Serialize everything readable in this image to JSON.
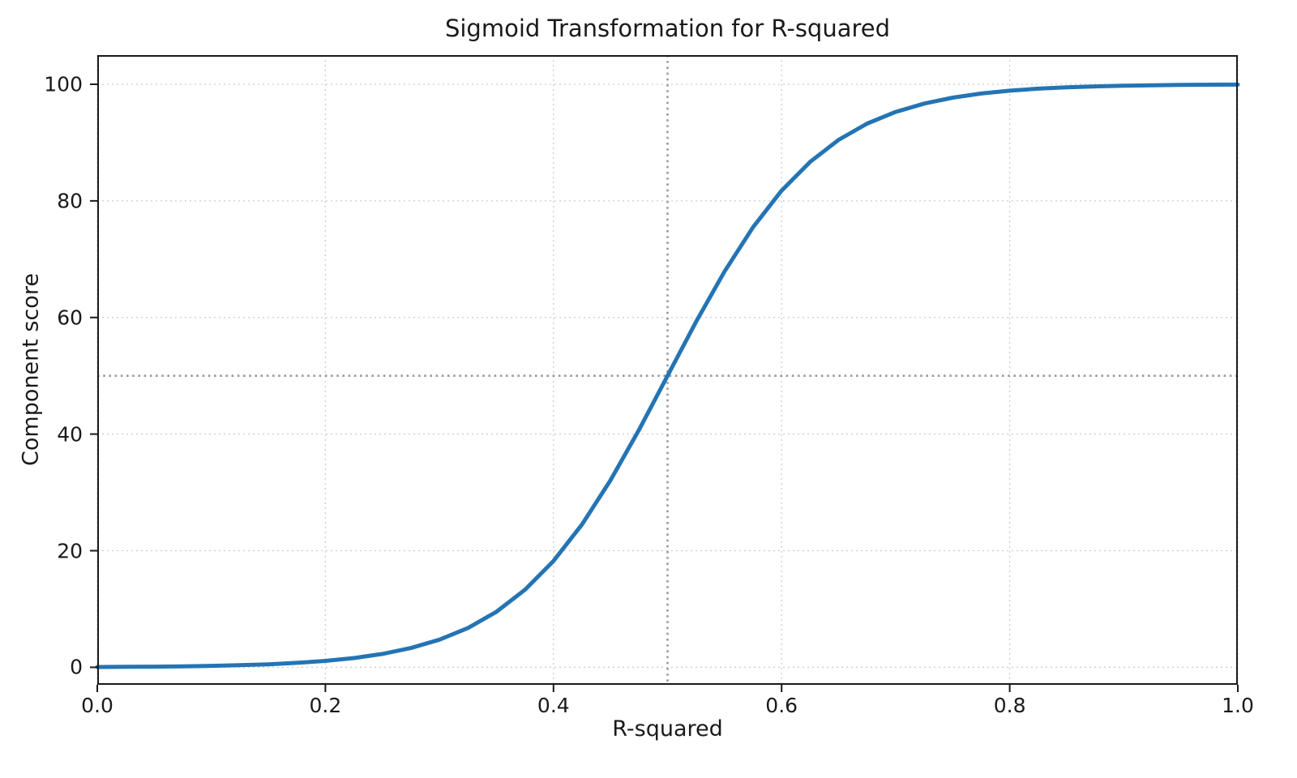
{
  "chart_data": {
    "type": "line",
    "title": "Sigmoid Transformation for R-squared",
    "xlabel": "R-squared",
    "ylabel": "Component score",
    "xlim": [
      0.0,
      1.0
    ],
    "ylim": [
      -3,
      105
    ],
    "xticks": [
      0.0,
      0.2,
      0.4,
      0.6,
      0.8,
      1.0
    ],
    "xtick_labels": [
      "0.0",
      "0.2",
      "0.4",
      "0.6",
      "0.8",
      "1.0"
    ],
    "yticks": [
      0,
      20,
      40,
      60,
      80,
      100
    ],
    "ytick_labels": [
      "0",
      "20",
      "40",
      "60",
      "80",
      "100"
    ],
    "grid": true,
    "legend": "none",
    "line_color": "#2474b4",
    "grid_color": "#cccccc",
    "reference_line_color": "#9a9a9a",
    "reference_lines": {
      "x": 0.5,
      "y": 50
    },
    "series": [
      {
        "name": "sigmoid",
        "x": [
          0.0,
          0.025,
          0.05,
          0.075,
          0.1,
          0.125,
          0.15,
          0.175,
          0.2,
          0.225,
          0.25,
          0.275,
          0.3,
          0.325,
          0.35,
          0.375,
          0.4,
          0.425,
          0.45,
          0.475,
          0.5,
          0.525,
          0.55,
          0.575,
          0.6,
          0.625,
          0.65,
          0.675,
          0.7,
          0.725,
          0.75,
          0.775,
          0.8,
          0.825,
          0.85,
          0.875,
          0.9,
          0.925,
          0.95,
          0.975,
          1.0
        ],
        "y": [
          0.06,
          0.08,
          0.12,
          0.17,
          0.25,
          0.36,
          0.52,
          0.76,
          1.1,
          1.59,
          2.3,
          3.31,
          4.74,
          6.75,
          9.53,
          13.3,
          18.24,
          24.51,
          32.08,
          40.73,
          50.0,
          59.27,
          67.92,
          75.49,
          81.76,
          86.7,
          90.47,
          93.25,
          95.26,
          96.69,
          97.7,
          98.41,
          98.9,
          99.24,
          99.48,
          99.64,
          99.75,
          99.83,
          99.88,
          99.92,
          99.94
        ]
      }
    ]
  }
}
